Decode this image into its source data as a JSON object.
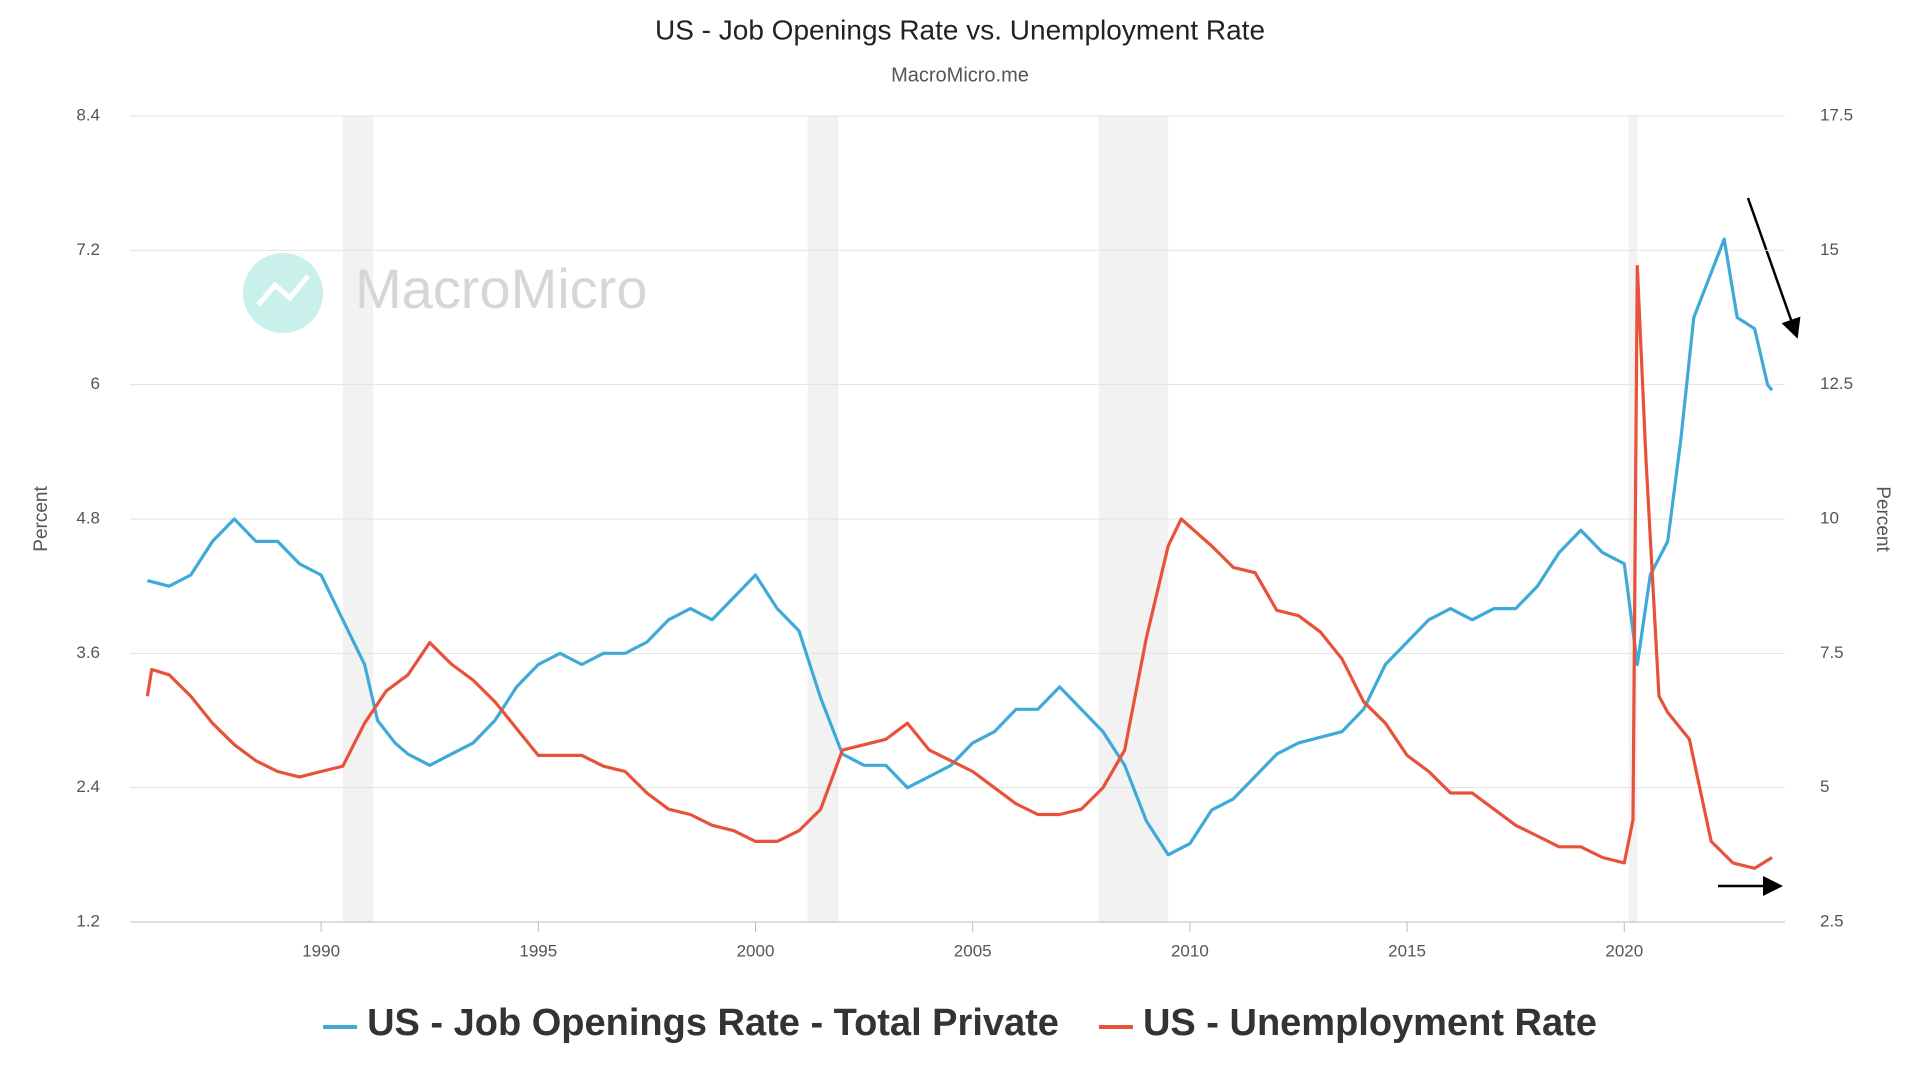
{
  "chart_data": {
    "type": "line",
    "title": "US - Job Openings Rate vs. Unemployment Rate",
    "subtitle": "MacroMicro.me",
    "watermark": "MacroMicro",
    "ylabel": "Percent",
    "y2label": "Percent",
    "xlim": [
      1985.6,
      2023.7
    ],
    "xticks": [
      1990,
      1995,
      2000,
      2005,
      2010,
      2015,
      2020
    ],
    "ylim": [
      1.2,
      8.4
    ],
    "yticks": [
      1.2,
      2.4,
      3.6,
      4.8,
      6,
      7.2,
      8.4
    ],
    "y2lim": [
      2.5,
      17.5
    ],
    "y2ticks": [
      2.5,
      5,
      7.5,
      10,
      12.5,
      15,
      17.5
    ],
    "grid": true,
    "recessions": [
      [
        1990.5,
        1991.2
      ],
      [
        2001.2,
        2001.9
      ],
      [
        2007.9,
        2009.5
      ],
      [
        2020.1,
        2020.3
      ]
    ],
    "series": [
      {
        "name": "US - Job Openings Rate - Total Private",
        "color": "#3fa9d8",
        "axis": "y",
        "x": [
          1986.0,
          1986.5,
          1987.0,
          1987.5,
          1988.0,
          1988.5,
          1989.0,
          1989.5,
          1990.0,
          1990.5,
          1991.0,
          1991.3,
          1991.7,
          1992.0,
          1992.5,
          1993.0,
          1993.5,
          1994.0,
          1994.5,
          1995.0,
          1995.5,
          1996.0,
          1996.5,
          1997.0,
          1997.5,
          1998.0,
          1998.5,
          1999.0,
          1999.5,
          2000.0,
          2000.5,
          2001.0,
          2001.5,
          2002.0,
          2002.5,
          2003.0,
          2003.5,
          2004.0,
          2004.5,
          2005.0,
          2005.5,
          2006.0,
          2006.5,
          2007.0,
          2007.5,
          2008.0,
          2008.5,
          2009.0,
          2009.5,
          2010.0,
          2010.5,
          2011.0,
          2011.5,
          2012.0,
          2012.5,
          2013.0,
          2013.5,
          2014.0,
          2014.5,
          2015.0,
          2015.5,
          2016.0,
          2016.5,
          2017.0,
          2017.5,
          2018.0,
          2018.5,
          2019.0,
          2019.5,
          2020.0,
          2020.3,
          2020.6,
          2021.0,
          2021.3,
          2021.6,
          2022.0,
          2022.3,
          2022.6,
          2023.0,
          2023.3,
          2023.4
        ],
        "values": [
          4.25,
          4.2,
          4.3,
          4.6,
          4.8,
          4.6,
          4.6,
          4.4,
          4.3,
          3.9,
          3.5,
          3.0,
          2.8,
          2.7,
          2.6,
          2.7,
          2.8,
          3.0,
          3.3,
          3.5,
          3.6,
          3.5,
          3.6,
          3.6,
          3.7,
          3.9,
          4.0,
          3.9,
          4.1,
          4.3,
          4.0,
          3.8,
          3.2,
          2.7,
          2.6,
          2.6,
          2.4,
          2.5,
          2.6,
          2.8,
          2.9,
          3.1,
          3.1,
          3.3,
          3.1,
          2.9,
          2.6,
          2.1,
          1.8,
          1.9,
          2.2,
          2.3,
          2.5,
          2.7,
          2.8,
          2.85,
          2.9,
          3.1,
          3.5,
          3.7,
          3.9,
          4.0,
          3.9,
          4.0,
          4.0,
          4.2,
          4.5,
          4.7,
          4.5,
          4.4,
          3.5,
          4.3,
          4.6,
          5.5,
          6.6,
          7.0,
          7.3,
          6.6,
          6.5,
          6.0,
          5.95
        ]
      },
      {
        "name": "US - Unemployment Rate",
        "color": "#e8513a",
        "axis": "y2",
        "x": [
          1986.0,
          1986.1,
          1986.5,
          1987.0,
          1987.5,
          1988.0,
          1988.5,
          1989.0,
          1989.5,
          1990.0,
          1990.5,
          1991.0,
          1991.5,
          1992.0,
          1992.5,
          1993.0,
          1993.5,
          1994.0,
          1994.5,
          1995.0,
          1995.5,
          1996.0,
          1996.5,
          1997.0,
          1997.5,
          1998.0,
          1998.5,
          1999.0,
          1999.5,
          2000.0,
          2000.5,
          2001.0,
          2001.5,
          2002.0,
          2002.5,
          2003.0,
          2003.5,
          2004.0,
          2004.5,
          2005.0,
          2005.5,
          2006.0,
          2006.5,
          2007.0,
          2007.5,
          2008.0,
          2008.5,
          2009.0,
          2009.5,
          2009.8,
          2010.5,
          2011.0,
          2011.5,
          2012.0,
          2012.5,
          2013.0,
          2013.5,
          2014.0,
          2014.5,
          2015.0,
          2015.5,
          2016.0,
          2016.5,
          2017.0,
          2017.5,
          2018.0,
          2018.5,
          2019.0,
          2019.5,
          2020.0,
          2020.2,
          2020.3,
          2020.5,
          2020.8,
          2021.0,
          2021.5,
          2022.0,
          2022.5,
          2023.0,
          2023.4
        ],
        "values": [
          6.7,
          7.2,
          7.1,
          6.7,
          6.2,
          5.8,
          5.5,
          5.3,
          5.2,
          5.3,
          5.4,
          6.2,
          6.8,
          7.1,
          7.7,
          7.3,
          7.0,
          6.6,
          6.1,
          5.6,
          5.6,
          5.6,
          5.4,
          5.3,
          4.9,
          4.6,
          4.5,
          4.3,
          4.2,
          4.0,
          4.0,
          4.2,
          4.6,
          5.7,
          5.8,
          5.9,
          6.2,
          5.7,
          5.5,
          5.3,
          5.0,
          4.7,
          4.5,
          4.5,
          4.6,
          5.0,
          5.7,
          7.8,
          9.5,
          10.0,
          9.5,
          9.1,
          9.0,
          8.3,
          8.2,
          7.9,
          7.4,
          6.6,
          6.2,
          5.6,
          5.3,
          4.9,
          4.9,
          4.6,
          4.3,
          4.1,
          3.9,
          3.9,
          3.7,
          3.6,
          4.4,
          14.7,
          11.1,
          6.7,
          6.4,
          5.9,
          4.0,
          3.6,
          3.5,
          3.7
        ]
      }
    ]
  }
}
